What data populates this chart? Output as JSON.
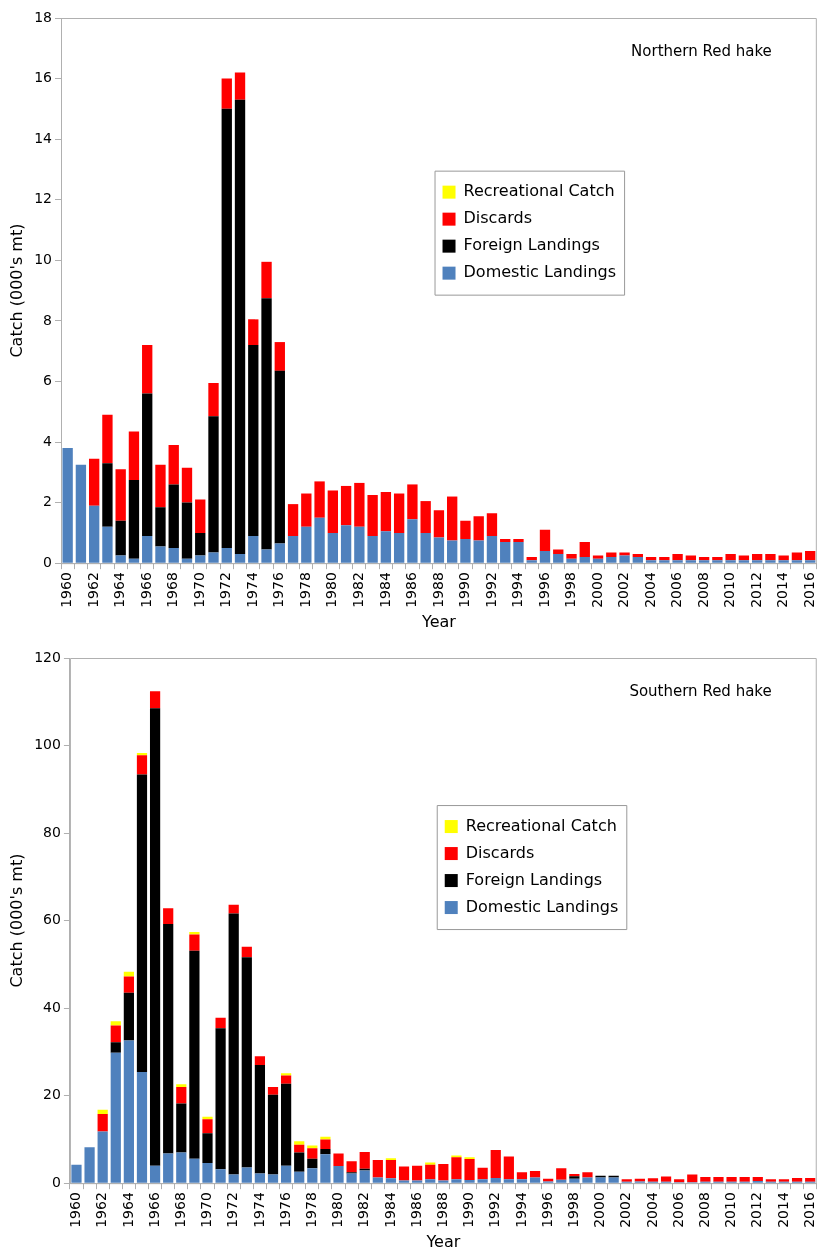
{
  "chart_data": [
    {
      "type": "bar",
      "title": "Northern Red hake",
      "xlabel": "Year",
      "ylabel": "Catch (000's mt)",
      "stacked": true,
      "legend": "top right",
      "grid": false,
      "categories": [
        "1960",
        null,
        "1962",
        null,
        "1964",
        null,
        "1966",
        null,
        "1968",
        null,
        "1970",
        null,
        "1972",
        null,
        "1974",
        null,
        "1976",
        null,
        "1978",
        null,
        "1980",
        null,
        "1982",
        null,
        "1984",
        null,
        "1986",
        null,
        "1988",
        null,
        "1990",
        null,
        "1992",
        null,
        "1994",
        null,
        "1996",
        null,
        "1998",
        null,
        "2000",
        null,
        "2002",
        null,
        "2004",
        null,
        "2006",
        null,
        "2008",
        null,
        "2010",
        null,
        "2012",
        null,
        "2014",
        null,
        "2016"
      ],
      "ylim": [
        0,
        18
      ],
      "yticks": [
        0,
        2,
        4,
        6,
        8,
        10,
        12,
        14,
        16,
        18
      ],
      "series": [
        {
          "name": "Domestic Landings",
          "color": "#4f81bd",
          "values": [
            3.8,
            3.25,
            1.9,
            1.2,
            0.25,
            0.15,
            0.9,
            0.55,
            0.5,
            0.15,
            0.25,
            0.35,
            0.5,
            0.3,
            0.9,
            0.45,
            0.65,
            0.9,
            1.2,
            1.5,
            1.0,
            1.25,
            1.2,
            0.9,
            1.05,
            1.0,
            1.45,
            1.0,
            0.85,
            0.75,
            0.8,
            0.75,
            0.9,
            0.7,
            0.7,
            0.1,
            0.4,
            0.3,
            0.15,
            0.2,
            0.15,
            0.2,
            0.25,
            0.2,
            0.1,
            0.1,
            0.1,
            0.1,
            0.1,
            0.1,
            0.1,
            0.1,
            0.1,
            0.1,
            0.1,
            0.1,
            0.1
          ]
        },
        {
          "name": "Foreign Landings",
          "color": "#000000",
          "values": [
            0,
            0,
            0,
            2.1,
            1.15,
            2.6,
            4.7,
            1.3,
            2.1,
            1.85,
            0.75,
            4.5,
            14.5,
            15.0,
            6.3,
            8.3,
            5.7,
            0,
            0,
            0,
            0,
            0,
            0,
            0,
            0,
            0,
            0,
            0,
            0,
            0,
            0,
            0,
            0,
            0,
            0,
            0,
            0,
            0,
            0,
            0,
            0,
            0,
            0,
            0,
            0,
            0,
            0,
            0,
            0,
            0,
            0,
            0,
            0,
            0,
            0,
            0,
            0
          ]
        },
        {
          "name": "Discards",
          "color": "#ff0000",
          "values": [
            0,
            0,
            1.55,
            1.6,
            1.7,
            1.6,
            1.6,
            1.4,
            1.3,
            1.15,
            1.1,
            1.1,
            1.0,
            0.9,
            0.85,
            1.2,
            0.95,
            1.05,
            1.1,
            1.2,
            1.4,
            1.3,
            1.45,
            1.35,
            1.3,
            1.3,
            1.15,
            1.05,
            0.9,
            1.45,
            0.6,
            0.8,
            0.75,
            0.1,
            0.1,
            0.1,
            0.7,
            0.15,
            0.15,
            0.5,
            0.1,
            0.15,
            0.1,
            0.1,
            0.1,
            0.1,
            0.2,
            0.15,
            0.1,
            0.1,
            0.2,
            0.15,
            0.2,
            0.2,
            0.15,
            0.25,
            0.3
          ]
        },
        {
          "name": "Recreational Catch",
          "color": "#ffff00",
          "values": [
            0,
            0,
            0,
            0,
            0,
            0,
            0,
            0,
            0,
            0,
            0,
            0,
            0,
            0,
            0,
            0,
            0,
            0,
            0,
            0,
            0,
            0,
            0,
            0,
            0,
            0,
            0,
            0,
            0,
            0,
            0,
            0,
            0,
            0,
            0,
            0,
            0,
            0,
            0,
            0,
            0,
            0,
            0,
            0,
            0,
            0,
            0,
            0,
            0,
            0,
            0,
            0,
            0,
            0,
            0,
            0,
            0
          ]
        }
      ]
    },
    {
      "type": "bar",
      "title": "Southern Red hake",
      "xlabel": "Year",
      "ylabel": "Catch (000's mt)",
      "stacked": true,
      "legend": "top right",
      "grid": false,
      "categories": [
        "1960",
        null,
        "1962",
        null,
        "1964",
        null,
        "1966",
        null,
        "1968",
        null,
        "1970",
        null,
        "1972",
        null,
        "1974",
        null,
        "1976",
        null,
        "1978",
        null,
        "1980",
        null,
        "1982",
        null,
        "1984",
        null,
        "1986",
        null,
        "1988",
        null,
        "1990",
        null,
        "1992",
        null,
        "1994",
        null,
        "1996",
        null,
        "1998",
        null,
        "2000",
        null,
        "2002",
        null,
        "2004",
        null,
        "2006",
        null,
        "2008",
        null,
        "2010",
        null,
        "2012",
        null,
        "2014",
        null,
        "2016"
      ],
      "ylim": [
        0,
        120
      ],
      "yticks": [
        0,
        20,
        40,
        60,
        80,
        100,
        120
      ],
      "series": [
        {
          "name": "Domestic Landings",
          "color": "#4f81bd",
          "values": [
            4.2,
            8.2,
            11.8,
            29.8,
            32.6,
            25.4,
            4,
            6.8,
            7,
            5.6,
            4.6,
            3.2,
            2,
            3.6,
            2.2,
            2,
            4,
            2.6,
            3.4,
            6.6,
            3.9,
            2.2,
            2.9,
            1.3,
            1.1,
            0.6,
            0.6,
            0.9,
            0.6,
            0.9,
            0.7,
            0.9,
            1.2,
            0.9,
            0.9,
            1.3,
            0.4,
            0.8,
            1.0,
            1.3,
            1.3,
            1.3,
            0.3,
            0.4,
            0.3,
            0.3,
            0.2,
            0.2,
            0.3,
            0.3,
            0.3,
            0.3,
            0.5,
            0.3,
            0.3,
            0.3,
            0.3
          ]
        },
        {
          "name": "Foreign Landings",
          "color": "#000000",
          "values": [
            0,
            0,
            0,
            2.4,
            10.9,
            68,
            104.5,
            52.4,
            11.2,
            47.5,
            6.8,
            32.2,
            59.6,
            48,
            24.8,
            18.2,
            18.7,
            4.4,
            2.2,
            1.2,
            0,
            0.3,
            0.4,
            null,
            0,
            0,
            0,
            0,
            0,
            0,
            0,
            0,
            0,
            0,
            0,
            0,
            0,
            0,
            0.6,
            0,
            0.4,
            0.4,
            0,
            0,
            0,
            0,
            0,
            0,
            0,
            0,
            0,
            0,
            0,
            0,
            0,
            0,
            0
          ]
        },
        {
          "name": "Discards",
          "color": "#ff0000",
          "values": [
            0,
            0,
            4.0,
            3.8,
            3.7,
            4.4,
            3.9,
            3.6,
            3.8,
            3.7,
            3.2,
            2.4,
            2,
            2.4,
            2,
            1.8,
            1.9,
            1.8,
            2.4,
            2.2,
            2.9,
            2.5,
            3.8,
            4.0,
            4.2,
            3.2,
            3.4,
            3.3,
            3.8,
            5.0,
            4.8,
            2.6,
            6.4,
            5.2,
            1.6,
            1.5,
            0.6,
            2.6,
            0.5,
            1.2,
            0,
            0,
            0.6,
            0.6,
            0.8,
            1.2,
            0.7,
            1.8,
            1.1,
            1.1,
            1.1,
            1.1,
            0.9,
            0.6,
            0.6,
            0.9,
            0.9
          ]
        },
        {
          "name": "Recreational Catch",
          "color": "#ffff00",
          "values": [
            0,
            0,
            1.0,
            1.0,
            1.1,
            0.5,
            0,
            0,
            0.6,
            0.6,
            0.6,
            0,
            0,
            0,
            0,
            0,
            0.5,
            0.8,
            0.6,
            0.6,
            null,
            0,
            0,
            0,
            0.4,
            0,
            0,
            0.5,
            0,
            0.4,
            0.4,
            0,
            0,
            0,
            0,
            0,
            0,
            0,
            0,
            0,
            0,
            0,
            0,
            0,
            0,
            0,
            0,
            0,
            0,
            0,
            0,
            0,
            0,
            0,
            0,
            0,
            0
          ]
        }
      ]
    }
  ]
}
